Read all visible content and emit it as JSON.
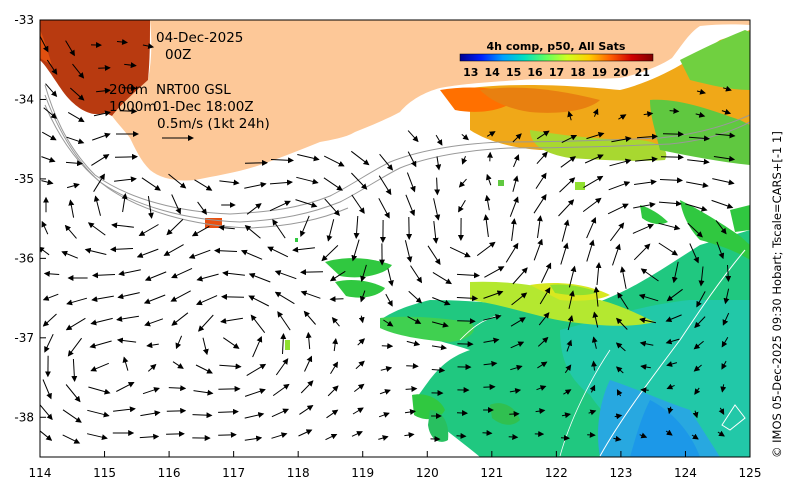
{
  "map": {
    "date": "04-Dec-2025",
    "time": "00Z",
    "depth_shallow": "200m",
    "depth_deep": "1000m",
    "product": "NRT00 GSL",
    "product_time": "01-Dec 18:00Z",
    "vector_scale": "0.5m/s (1kt 24h)",
    "colorbar_title": "4h comp, p50, All Sats",
    "colorbar_ticks": [
      "13",
      "14",
      "15",
      "16",
      "17",
      "18",
      "19",
      "20",
      "21"
    ],
    "colorbar_min": 12.5,
    "colorbar_max": 21.5,
    "colorbar_colors": [
      "#000090",
      "#0020ff",
      "#00a0ff",
      "#00e0c0",
      "#60ff60",
      "#d0ff20",
      "#ffd000",
      "#ff6000",
      "#d00000",
      "#800000"
    ],
    "credit": "© IMOS 05-Dec-2025 09:30 Hobart; Tscale=CARS+[-1 1]",
    "land_color": "#fdc898",
    "x_axis": {
      "min": 114,
      "max": 125,
      "ticks": [
        "114",
        "115",
        "116",
        "117",
        "118",
        "119",
        "120",
        "121",
        "122",
        "123",
        "124",
        "125"
      ]
    },
    "y_axis": {
      "min": -38.5,
      "max": -33,
      "ticks": [
        "-33",
        "-34",
        "-35",
        "-36",
        "-37",
        "-38"
      ]
    }
  }
}
